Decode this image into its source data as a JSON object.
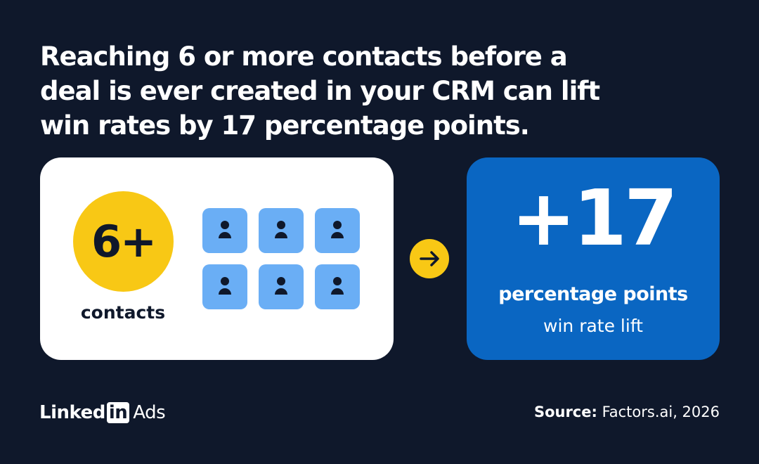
{
  "headline": [
    "Reaching 6 or more contacts before a",
    "deal is ever created in your CRM can lift",
    "win rates by 17 percentage points."
  ],
  "left_card": {
    "badge": "6+",
    "label": "contacts"
  },
  "right_card": {
    "value": "+17",
    "label": "percentage points",
    "sublabel": "win rate lift"
  },
  "footer": {
    "brand": {
      "linked": "Linked",
      "in": "in",
      "product": "Ads"
    },
    "source_label": "Source:",
    "source": "Factors.ai, 2026"
  }
}
